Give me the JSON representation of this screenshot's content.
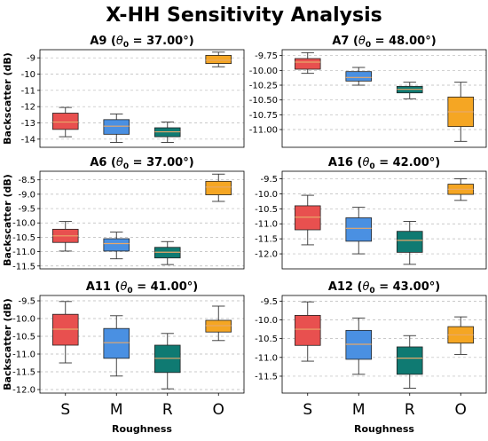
{
  "title": "X-HH Sensitivity Analysis",
  "colors": {
    "S": "#e8504f",
    "M": "#4a90e2",
    "R": "#0f7a72",
    "O": "#f5a623",
    "median": "#e8a86a",
    "whisker": "#333333"
  },
  "chart_data": {
    "type": "box",
    "categories": [
      "S",
      "M",
      "R",
      "O"
    ],
    "xlabel": "Roughness",
    "ylabel": "Backscatter (dB)",
    "grid": true,
    "panels": [
      {
        "id": "A9",
        "theta0": "37.00°",
        "ylim": [
          -14.5,
          -8.5
        ],
        "yticks": [
          -14,
          -13,
          -12,
          -11,
          -10,
          -9
        ],
        "boxes": [
          {
            "category": "S",
            "whislo": -13.85,
            "q1": -13.4,
            "med": -12.95,
            "q3": -12.4,
            "whishi": -12.05
          },
          {
            "category": "M",
            "whislo": -14.2,
            "q1": -13.7,
            "med": -13.2,
            "q3": -12.8,
            "whishi": -12.45
          },
          {
            "category": "R",
            "whislo": -14.2,
            "q1": -13.85,
            "med": -13.55,
            "q3": -13.3,
            "whishi": -12.95
          },
          {
            "category": "O",
            "whislo": -9.55,
            "q1": -9.35,
            "med": -9.15,
            "q3": -8.85,
            "whishi": -8.65
          }
        ]
      },
      {
        "id": "A7",
        "theta0": "48.00°",
        "ylim": [
          -11.3,
          -9.65
        ],
        "yticks": [
          -11.0,
          -10.75,
          -10.5,
          -10.25,
          -10.0,
          -9.75
        ],
        "yticklabels": [
          "-11.00",
          "-10.75",
          "-10.50",
          "-10.25",
          "-10.00",
          "-9.75"
        ],
        "boxes": [
          {
            "category": "S",
            "whislo": -10.05,
            "q1": -9.98,
            "med": -9.86,
            "q3": -9.8,
            "whishi": -9.7
          },
          {
            "category": "M",
            "whislo": -10.25,
            "q1": -10.18,
            "med": -10.12,
            "q3": -10.02,
            "whishi": -9.95
          },
          {
            "category": "R",
            "whislo": -10.48,
            "q1": -10.38,
            "med": -10.32,
            "q3": -10.27,
            "whishi": -10.2
          },
          {
            "category": "O",
            "whislo": -11.2,
            "q1": -10.95,
            "med": -10.7,
            "q3": -10.45,
            "whishi": -10.2
          }
        ]
      },
      {
        "id": "A6",
        "theta0": "37.00°",
        "ylim": [
          -11.6,
          -8.2
        ],
        "yticks": [
          -11.5,
          -11.0,
          -10.5,
          -10.0,
          -9.5,
          -9.0,
          -8.5
        ],
        "yticklabels": [
          "-11.5",
          "-11.0",
          "-10.5",
          "-10.0",
          "-9.5",
          "-9.0",
          "-8.5"
        ],
        "boxes": [
          {
            "category": "S",
            "whislo": -10.98,
            "q1": -10.68,
            "med": -10.45,
            "q3": -10.22,
            "whishi": -9.95
          },
          {
            "category": "M",
            "whislo": -11.25,
            "q1": -10.98,
            "med": -10.72,
            "q3": -10.55,
            "whishi": -10.32
          },
          {
            "category": "R",
            "whislo": -11.45,
            "q1": -11.22,
            "med": -11.02,
            "q3": -10.85,
            "whishi": -10.65
          },
          {
            "category": "O",
            "whislo": -9.25,
            "q1": -9.02,
            "med": -8.75,
            "q3": -8.55,
            "whishi": -8.3
          }
        ]
      },
      {
        "id": "A16",
        "theta0": "42.00°",
        "ylim": [
          -12.5,
          -9.25
        ],
        "yticks": [
          -12.0,
          -11.5,
          -11.0,
          -10.5,
          -10.0,
          -9.5
        ],
        "yticklabels": [
          "-12.0",
          "-11.5",
          "-11.0",
          "-10.5",
          "-10.0",
          "-9.5"
        ],
        "boxes": [
          {
            "category": "S",
            "whislo": -11.7,
            "q1": -11.2,
            "med": -10.78,
            "q3": -10.4,
            "whishi": -10.05
          },
          {
            "category": "M",
            "whislo": -12.0,
            "q1": -11.58,
            "med": -11.15,
            "q3": -10.8,
            "whishi": -10.45
          },
          {
            "category": "R",
            "whislo": -12.35,
            "q1": -11.95,
            "med": -11.55,
            "q3": -11.25,
            "whishi": -10.92
          },
          {
            "category": "O",
            "whislo": -10.22,
            "q1": -10.02,
            "med": -9.85,
            "q3": -9.68,
            "whishi": -9.5
          }
        ]
      },
      {
        "id": "A11",
        "theta0": "41.00°",
        "ylim": [
          -12.1,
          -9.35
        ],
        "yticks": [
          -12.0,
          -11.5,
          -11.0,
          -10.5,
          -10.0,
          -9.5
        ],
        "yticklabels": [
          "-12.0",
          "-11.5",
          "-11.0",
          "-10.5",
          "-10.0",
          "-9.5"
        ],
        "boxes": [
          {
            "category": "S",
            "whislo": -11.25,
            "q1": -10.75,
            "med": -10.3,
            "q3": -9.88,
            "whishi": -9.52
          },
          {
            "category": "M",
            "whislo": -11.62,
            "q1": -11.12,
            "med": -10.68,
            "q3": -10.28,
            "whishi": -9.92
          },
          {
            "category": "R",
            "whislo": -11.98,
            "q1": -11.52,
            "med": -11.12,
            "q3": -10.75,
            "whishi": -10.42
          },
          {
            "category": "O",
            "whislo": -10.62,
            "q1": -10.38,
            "med": -10.2,
            "q3": -10.05,
            "whishi": -9.65
          }
        ]
      },
      {
        "id": "A12",
        "theta0": "43.00°",
        "ylim": [
          -11.95,
          -9.35
        ],
        "yticks": [
          -11.5,
          -11.0,
          -10.5,
          -10.0,
          -9.5
        ],
        "yticklabels": [
          "-11.5",
          "-11.0",
          "-10.5",
          "-10.0",
          "-9.5"
        ],
        "boxes": [
          {
            "category": "S",
            "whislo": -11.1,
            "q1": -10.68,
            "med": -10.25,
            "q3": -9.88,
            "whishi": -9.52
          },
          {
            "category": "M",
            "whislo": -11.45,
            "q1": -11.05,
            "med": -10.65,
            "q3": -10.28,
            "whishi": -9.95
          },
          {
            "category": "R",
            "whislo": -11.82,
            "q1": -11.45,
            "med": -11.02,
            "q3": -10.72,
            "whishi": -10.42
          },
          {
            "category": "O",
            "whislo": -10.92,
            "q1": -10.62,
            "med": -10.4,
            "q3": -10.18,
            "whishi": -9.92
          }
        ]
      }
    ]
  }
}
